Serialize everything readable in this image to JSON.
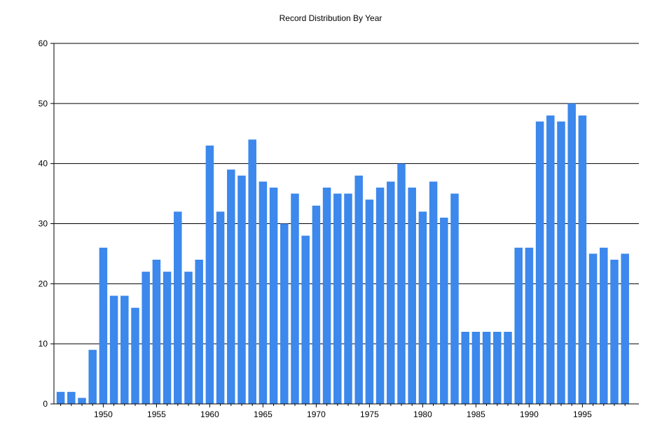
{
  "chart_data": {
    "type": "bar",
    "title": "Record Distribution By Year",
    "xlabel": "",
    "ylabel": "",
    "ylim": [
      0,
      60
    ],
    "yticks": [
      0,
      10,
      20,
      30,
      40,
      50,
      60
    ],
    "xticks": [
      1950,
      1955,
      1960,
      1965,
      1970,
      1975,
      1980,
      1985,
      1990,
      1995
    ],
    "grid": true,
    "legend": "none",
    "bar_color": "#3C88EC",
    "series": [
      {
        "x": [
          1946,
          1947,
          1948,
          1949,
          1950,
          1951,
          1952,
          1953,
          1954,
          1955,
          1956,
          1957,
          1958,
          1959,
          1960,
          1961,
          1962,
          1963,
          1964,
          1965,
          1966,
          1967,
          1968,
          1969,
          1970,
          1971,
          1972,
          1973,
          1974,
          1975,
          1976,
          1977,
          1978,
          1979,
          1980,
          1981,
          1982,
          1983,
          1984,
          1985,
          1986,
          1987,
          1988,
          1989,
          1990,
          1991,
          1992,
          1993,
          1994,
          1995,
          1996,
          1997,
          1998,
          1999
        ],
        "values": [
          2,
          2,
          1,
          9,
          26,
          18,
          18,
          16,
          22,
          24,
          22,
          32,
          22,
          24,
          43,
          32,
          39,
          38,
          44,
          37,
          36,
          30,
          35,
          28,
          33,
          36,
          35,
          35,
          38,
          34,
          36,
          37,
          40,
          36,
          32,
          37,
          31,
          35,
          12,
          12,
          12,
          12,
          12,
          26,
          26,
          47,
          48,
          47,
          50,
          48,
          25,
          26,
          24,
          25
        ]
      }
    ]
  }
}
